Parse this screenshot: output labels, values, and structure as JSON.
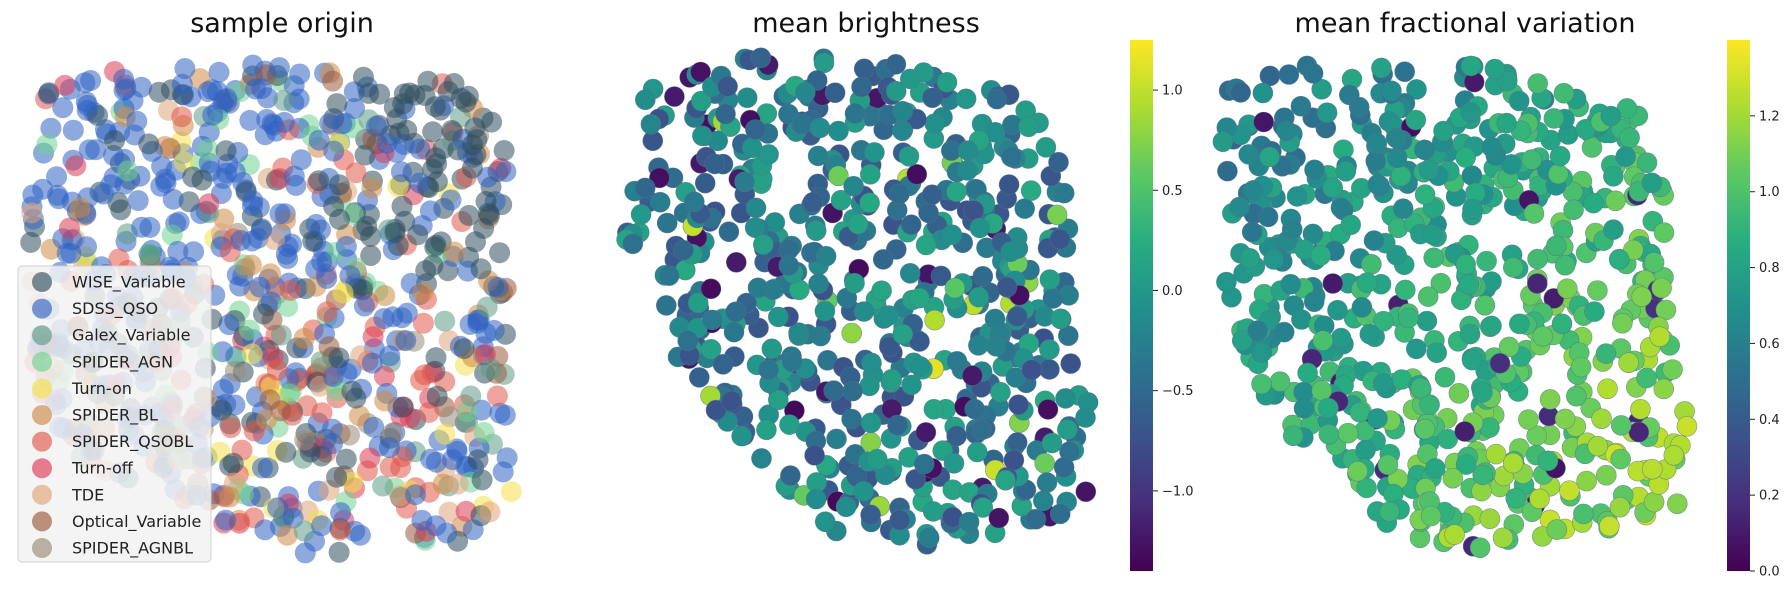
{
  "chart_data": [
    {
      "type": "scatter",
      "title": "sample origin",
      "color_by": "category",
      "legend_position": "lower-left",
      "series": [
        {
          "name": "WISE_Variable",
          "color": "#2f4f5f"
        },
        {
          "name": "SDSS_QSO",
          "color": "#2f62c2"
        },
        {
          "name": "Galex_Variable",
          "color": "#5f9a86"
        },
        {
          "name": "SPIDER_AGN",
          "color": "#6fd28f"
        },
        {
          "name": "Turn-on",
          "color": "#f2e04a"
        },
        {
          "name": "SPIDER_BL",
          "color": "#d08a45"
        },
        {
          "name": "SPIDER_QSOBL",
          "color": "#e0584a"
        },
        {
          "name": "Turn-off",
          "color": "#dd3a55"
        },
        {
          "name": "TDE",
          "color": "#e0a47a"
        },
        {
          "name": "Optical_Variable",
          "color": "#9a5a3c"
        },
        {
          "name": "SPIDER_AGNBL",
          "color": "#9a8a76"
        }
      ]
    },
    {
      "type": "scatter",
      "title": "mean brightness",
      "color_by": "value",
      "colormap": "viridis",
      "colorbar": {
        "min": -1.4,
        "max": 1.25,
        "ticks": [
          1.0,
          0.5,
          0.0,
          -0.5,
          -1.0
        ],
        "tick_labels": [
          "1.0",
          "0.5",
          "0.0",
          "−0.5",
          "−1.0"
        ]
      }
    },
    {
      "type": "scatter",
      "title": "mean fractional variation",
      "color_by": "value",
      "colormap": "viridis",
      "colorbar": {
        "min": 0.0,
        "max": 1.4,
        "ticks": [
          1.2,
          1.0,
          0.8,
          0.6,
          0.4,
          0.2,
          0.0
        ],
        "tick_labels": [
          "1.2",
          "1.0",
          "0.8",
          "0.6",
          "0.4",
          "0.2",
          "0.0"
        ]
      }
    }
  ]
}
